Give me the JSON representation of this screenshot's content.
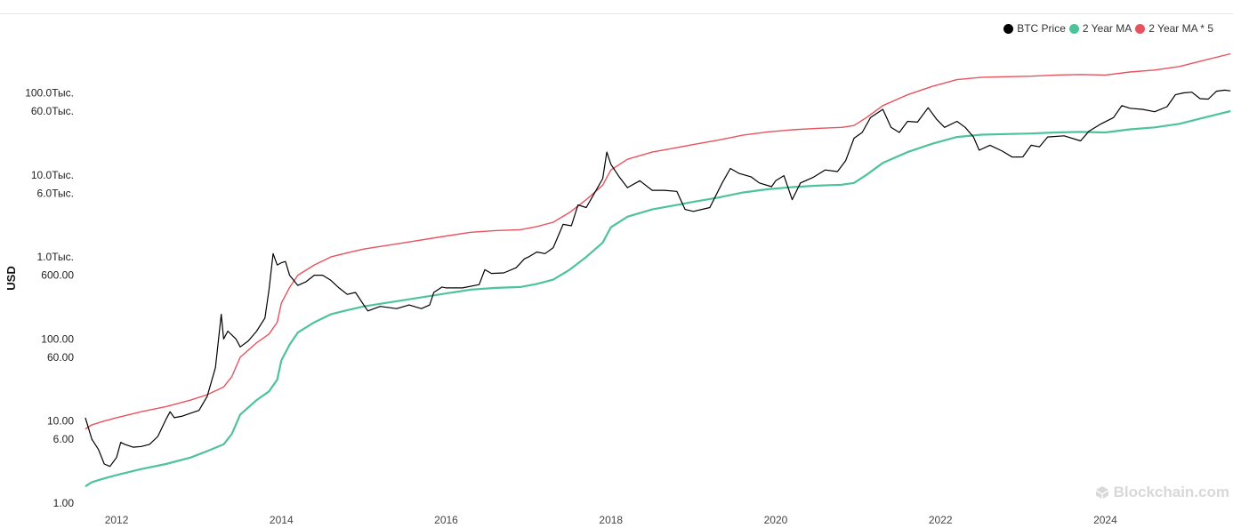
{
  "legend": {
    "items": [
      {
        "label": "BTC Price",
        "color": "#000000"
      },
      {
        "label": "2 Year MA",
        "color": "#4cc39b"
      },
      {
        "label": "2 Year MA * 5",
        "color": "#e8525d"
      }
    ]
  },
  "watermark": {
    "text": "Blockchain.com"
  },
  "chart_data": {
    "type": "line",
    "ylabel": "USD",
    "xlabel": "",
    "y_scale": "log",
    "ylim": [
      1,
      500000
    ],
    "xlim": [
      2011.6,
      2025.55
    ],
    "grid": false,
    "legend_position": "top-right",
    "y_ticks": [
      {
        "value": 100000,
        "label": "100.0Тыс."
      },
      {
        "value": 60000,
        "label": "60.0Тыс."
      },
      {
        "value": 10000,
        "label": "10.0Тыс."
      },
      {
        "value": 6000,
        "label": "6.0Тыс."
      },
      {
        "value": 1000,
        "label": "1.0Тыс."
      },
      {
        "value": 600,
        "label": "600.00"
      },
      {
        "value": 100,
        "label": "100.00"
      },
      {
        "value": 60,
        "label": "60.00"
      },
      {
        "value": 10,
        "label": "10.00"
      },
      {
        "value": 6,
        "label": "6.00"
      },
      {
        "value": 1,
        "label": "1.00"
      }
    ],
    "x_ticks": [
      {
        "value": 2012,
        "label": "2012"
      },
      {
        "value": 2014,
        "label": "2014"
      },
      {
        "value": 2016,
        "label": "2016"
      },
      {
        "value": 2018,
        "label": "2018"
      },
      {
        "value": 2020,
        "label": "2020"
      },
      {
        "value": 2022,
        "label": "2022"
      },
      {
        "value": 2024,
        "label": "2024"
      }
    ],
    "series": [
      {
        "name": "BTC Price",
        "color": "#000000",
        "points": [
          [
            2011.62,
            11
          ],
          [
            2011.7,
            6
          ],
          [
            2011.78,
            4.5
          ],
          [
            2011.85,
            3
          ],
          [
            2011.92,
            2.8
          ],
          [
            2012.0,
            3.6
          ],
          [
            2012.05,
            5.5
          ],
          [
            2012.1,
            5.2
          ],
          [
            2012.2,
            4.8
          ],
          [
            2012.3,
            4.9
          ],
          [
            2012.4,
            5.2
          ],
          [
            2012.5,
            6.5
          ],
          [
            2012.6,
            10.5
          ],
          [
            2012.65,
            13
          ],
          [
            2012.7,
            11
          ],
          [
            2012.8,
            11.5
          ],
          [
            2012.9,
            12.5
          ],
          [
            2013.0,
            13.5
          ],
          [
            2013.1,
            20
          ],
          [
            2013.2,
            45
          ],
          [
            2013.27,
            200
          ],
          [
            2013.3,
            100
          ],
          [
            2013.35,
            125
          ],
          [
            2013.45,
            100
          ],
          [
            2013.5,
            80
          ],
          [
            2013.6,
            95
          ],
          [
            2013.7,
            125
          ],
          [
            2013.8,
            180
          ],
          [
            2013.85,
            400
          ],
          [
            2013.9,
            1100
          ],
          [
            2013.95,
            800
          ],
          [
            2014.0,
            850
          ],
          [
            2014.05,
            880
          ],
          [
            2014.1,
            600
          ],
          [
            2014.2,
            450
          ],
          [
            2014.3,
            500
          ],
          [
            2014.4,
            600
          ],
          [
            2014.5,
            600
          ],
          [
            2014.6,
            520
          ],
          [
            2014.7,
            420
          ],
          [
            2014.8,
            350
          ],
          [
            2014.9,
            370
          ],
          [
            2015.0,
            260
          ],
          [
            2015.05,
            220
          ],
          [
            2015.2,
            250
          ],
          [
            2015.4,
            235
          ],
          [
            2015.55,
            260
          ],
          [
            2015.7,
            235
          ],
          [
            2015.8,
            260
          ],
          [
            2015.85,
            370
          ],
          [
            2015.95,
            430
          ],
          [
            2016.0,
            420
          ],
          [
            2016.2,
            420
          ],
          [
            2016.4,
            460
          ],
          [
            2016.47,
            700
          ],
          [
            2016.55,
            630
          ],
          [
            2016.7,
            640
          ],
          [
            2016.85,
            740
          ],
          [
            2016.95,
            950
          ],
          [
            2017.0,
            1000
          ],
          [
            2017.1,
            1150
          ],
          [
            2017.2,
            1100
          ],
          [
            2017.3,
            1300
          ],
          [
            2017.42,
            2500
          ],
          [
            2017.52,
            2400
          ],
          [
            2017.6,
            4300
          ],
          [
            2017.7,
            4000
          ],
          [
            2017.8,
            6000
          ],
          [
            2017.9,
            9000
          ],
          [
            2017.95,
            19000
          ],
          [
            2018.0,
            13500
          ],
          [
            2018.1,
            9500
          ],
          [
            2018.2,
            7000
          ],
          [
            2018.35,
            8500
          ],
          [
            2018.5,
            6500
          ],
          [
            2018.65,
            6500
          ],
          [
            2018.8,
            6300
          ],
          [
            2018.9,
            3800
          ],
          [
            2019.0,
            3600
          ],
          [
            2019.2,
            4000
          ],
          [
            2019.35,
            8000
          ],
          [
            2019.45,
            12000
          ],
          [
            2019.55,
            10500
          ],
          [
            2019.7,
            9500
          ],
          [
            2019.8,
            8000
          ],
          [
            2019.95,
            7200
          ],
          [
            2020.0,
            8500
          ],
          [
            2020.1,
            9800
          ],
          [
            2020.2,
            5000
          ],
          [
            2020.3,
            8000
          ],
          [
            2020.45,
            9300
          ],
          [
            2020.6,
            11500
          ],
          [
            2020.75,
            11000
          ],
          [
            2020.85,
            15000
          ],
          [
            2020.95,
            28000
          ],
          [
            2021.05,
            33000
          ],
          [
            2021.15,
            50000
          ],
          [
            2021.3,
            63000
          ],
          [
            2021.4,
            38000
          ],
          [
            2021.5,
            33000
          ],
          [
            2021.6,
            45000
          ],
          [
            2021.72,
            44000
          ],
          [
            2021.85,
            66000
          ],
          [
            2021.95,
            48000
          ],
          [
            2022.05,
            38000
          ],
          [
            2022.2,
            45000
          ],
          [
            2022.3,
            38000
          ],
          [
            2022.4,
            29000
          ],
          [
            2022.47,
            20000
          ],
          [
            2022.6,
            23000
          ],
          [
            2022.75,
            19500
          ],
          [
            2022.87,
            16500
          ],
          [
            2023.0,
            16600
          ],
          [
            2023.1,
            23000
          ],
          [
            2023.2,
            22000
          ],
          [
            2023.3,
            29000
          ],
          [
            2023.5,
            30000
          ],
          [
            2023.7,
            26000
          ],
          [
            2023.8,
            34000
          ],
          [
            2023.95,
            42000
          ],
          [
            2024.1,
            50000
          ],
          [
            2024.2,
            70000
          ],
          [
            2024.3,
            65000
          ],
          [
            2024.45,
            63000
          ],
          [
            2024.6,
            59000
          ],
          [
            2024.75,
            68000
          ],
          [
            2024.85,
            95000
          ],
          [
            2024.95,
            100000
          ],
          [
            2025.05,
            102000
          ],
          [
            2025.15,
            85000
          ],
          [
            2025.25,
            84000
          ],
          [
            2025.35,
            105000
          ],
          [
            2025.45,
            108000
          ],
          [
            2025.52,
            106000
          ]
        ]
      },
      {
        "name": "2 Year MA",
        "color": "#4cc39b",
        "points": [
          [
            2011.62,
            1.6
          ],
          [
            2011.7,
            1.8
          ],
          [
            2011.85,
            2.0
          ],
          [
            2012.0,
            2.2
          ],
          [
            2012.3,
            2.6
          ],
          [
            2012.6,
            3.0
          ],
          [
            2012.9,
            3.6
          ],
          [
            2013.1,
            4.3
          ],
          [
            2013.3,
            5.2
          ],
          [
            2013.4,
            7.0
          ],
          [
            2013.5,
            12
          ],
          [
            2013.7,
            18
          ],
          [
            2013.85,
            23
          ],
          [
            2013.95,
            32
          ],
          [
            2014.0,
            55
          ],
          [
            2014.1,
            85
          ],
          [
            2014.2,
            120
          ],
          [
            2014.4,
            160
          ],
          [
            2014.6,
            200
          ],
          [
            2014.8,
            225
          ],
          [
            2015.0,
            250
          ],
          [
            2015.5,
            300
          ],
          [
            2016.0,
            360
          ],
          [
            2016.3,
            400
          ],
          [
            2016.6,
            420
          ],
          [
            2016.9,
            430
          ],
          [
            2017.1,
            470
          ],
          [
            2017.3,
            530
          ],
          [
            2017.5,
            700
          ],
          [
            2017.7,
            1000
          ],
          [
            2017.9,
            1500
          ],
          [
            2018.0,
            2300
          ],
          [
            2018.2,
            3100
          ],
          [
            2018.5,
            3800
          ],
          [
            2018.8,
            4300
          ],
          [
            2019.0,
            4700
          ],
          [
            2019.3,
            5300
          ],
          [
            2019.6,
            6100
          ],
          [
            2019.9,
            6700
          ],
          [
            2020.2,
            7100
          ],
          [
            2020.5,
            7400
          ],
          [
            2020.8,
            7600
          ],
          [
            2020.95,
            8000
          ],
          [
            2021.1,
            10000
          ],
          [
            2021.3,
            14000
          ],
          [
            2021.6,
            19000
          ],
          [
            2021.9,
            24000
          ],
          [
            2022.2,
            29000
          ],
          [
            2022.5,
            31000
          ],
          [
            2022.8,
            31500
          ],
          [
            2023.1,
            32000
          ],
          [
            2023.4,
            33000
          ],
          [
            2023.7,
            33500
          ],
          [
            2024.0,
            33000
          ],
          [
            2024.3,
            36000
          ],
          [
            2024.6,
            38000
          ],
          [
            2024.9,
            42000
          ],
          [
            2025.2,
            50000
          ],
          [
            2025.52,
            60000
          ]
        ]
      },
      {
        "name": "2 Year MA * 5",
        "color": "#e8525d",
        "points": [
          [
            2011.62,
            8
          ],
          [
            2011.7,
            9
          ],
          [
            2011.85,
            10
          ],
          [
            2012.0,
            11
          ],
          [
            2012.3,
            13
          ],
          [
            2012.6,
            15
          ],
          [
            2012.9,
            18
          ],
          [
            2013.1,
            21
          ],
          [
            2013.3,
            26
          ],
          [
            2013.4,
            35
          ],
          [
            2013.5,
            60
          ],
          [
            2013.7,
            90
          ],
          [
            2013.85,
            115
          ],
          [
            2013.95,
            160
          ],
          [
            2014.0,
            275
          ],
          [
            2014.1,
            425
          ],
          [
            2014.2,
            600
          ],
          [
            2014.4,
            800
          ],
          [
            2014.6,
            1000
          ],
          [
            2014.8,
            1125
          ],
          [
            2015.0,
            1250
          ],
          [
            2015.5,
            1500
          ],
          [
            2016.0,
            1800
          ],
          [
            2016.3,
            2000
          ],
          [
            2016.6,
            2100
          ],
          [
            2016.9,
            2150
          ],
          [
            2017.1,
            2350
          ],
          [
            2017.3,
            2650
          ],
          [
            2017.5,
            3500
          ],
          [
            2017.7,
            5000
          ],
          [
            2017.9,
            7500
          ],
          [
            2018.0,
            11500
          ],
          [
            2018.2,
            15500
          ],
          [
            2018.5,
            19000
          ],
          [
            2018.8,
            21500
          ],
          [
            2019.0,
            23500
          ],
          [
            2019.3,
            26500
          ],
          [
            2019.6,
            30500
          ],
          [
            2019.9,
            33500
          ],
          [
            2020.2,
            35500
          ],
          [
            2020.5,
            37000
          ],
          [
            2020.8,
            38000
          ],
          [
            2020.95,
            40000
          ],
          [
            2021.1,
            50000
          ],
          [
            2021.3,
            70000
          ],
          [
            2021.6,
            95000
          ],
          [
            2021.9,
            120000
          ],
          [
            2022.2,
            145000
          ],
          [
            2022.5,
            155000
          ],
          [
            2022.8,
            157500
          ],
          [
            2023.1,
            160000
          ],
          [
            2023.4,
            165000
          ],
          [
            2023.7,
            167500
          ],
          [
            2024.0,
            165000
          ],
          [
            2024.3,
            180000
          ],
          [
            2024.6,
            190000
          ],
          [
            2024.9,
            210000
          ],
          [
            2025.2,
            250000
          ],
          [
            2025.52,
            300000
          ]
        ]
      }
    ]
  }
}
